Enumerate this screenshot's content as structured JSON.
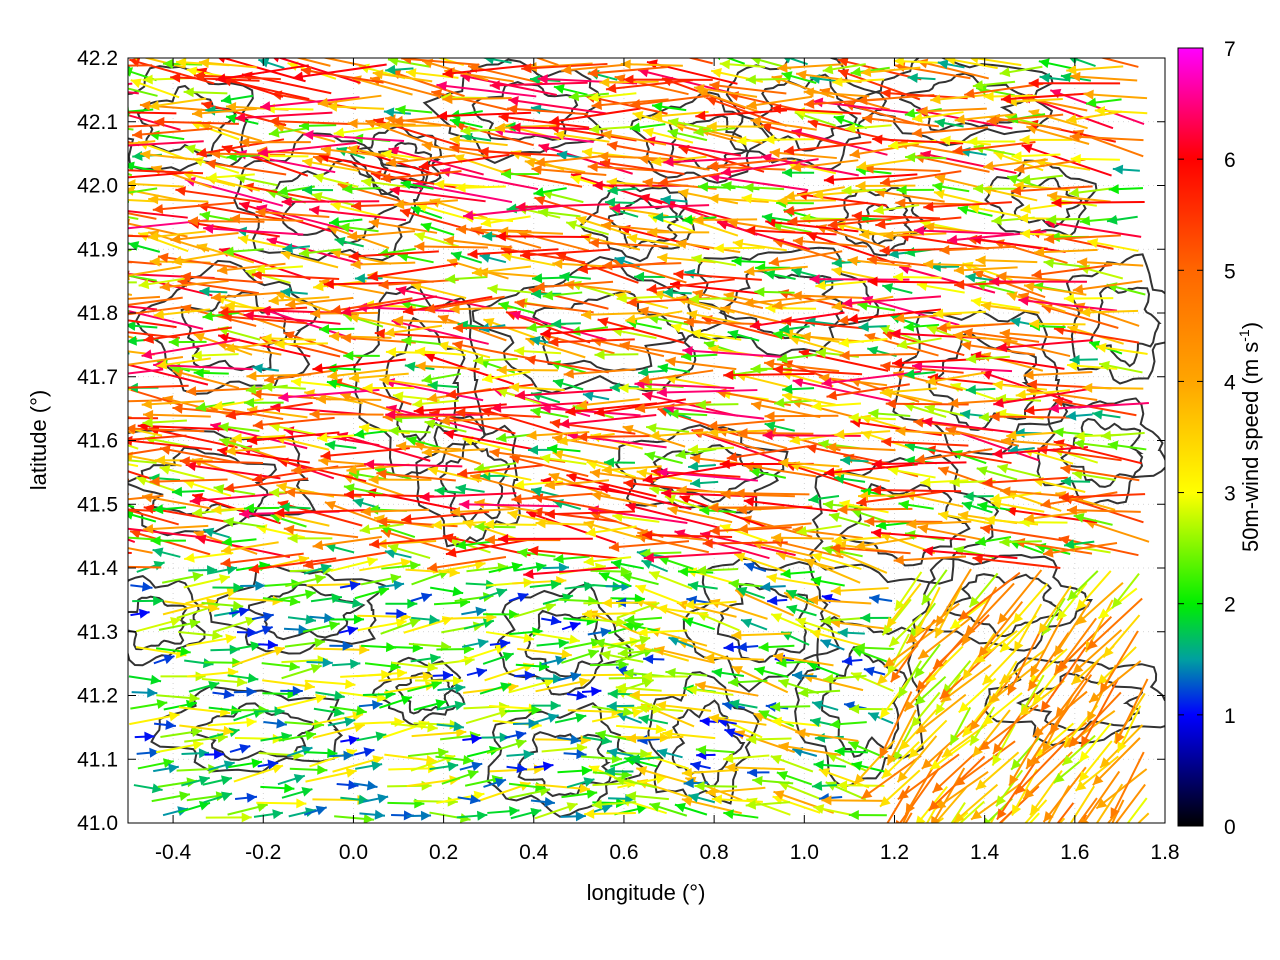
{
  "chart_data": {
    "type": "vector-field",
    "xlabel": "longitude (°)",
    "ylabel": "latitude (°)",
    "xlim": [
      -0.5,
      1.8
    ],
    "ylim": [
      41.0,
      42.2
    ],
    "xticks": [
      -0.4,
      -0.2,
      0.0,
      0.2,
      0.4,
      0.6,
      0.8,
      1.0,
      1.2,
      1.4,
      1.6,
      1.8
    ],
    "xtick_labels": [
      "-0.4",
      "-0.2",
      "0.0",
      "0.2",
      "0.4",
      "0.6",
      "0.8",
      "1.0",
      "1.2",
      "1.4",
      "1.6",
      "1.8"
    ],
    "yticks": [
      41.0,
      41.1,
      41.2,
      41.3,
      41.4,
      41.5,
      41.6,
      41.7,
      41.8,
      41.9,
      42.0,
      42.1,
      42.2
    ],
    "ytick_labels": [
      "41.0",
      "41.1",
      "41.2",
      "41.3",
      "41.4",
      "41.5",
      "41.6",
      "41.7",
      "41.8",
      "41.9",
      "42.0",
      "42.1",
      "42.2"
    ],
    "grid": true,
    "colorbar": {
      "label": "50m-wind speed (m s",
      "label_superscript": "-1",
      "label_suffix": ")",
      "range": [
        0,
        7
      ],
      "ticks": [
        0,
        1,
        2,
        3,
        4,
        5,
        6,
        7
      ],
      "tick_labels": [
        "0",
        "1",
        "2",
        "3",
        "4",
        "5",
        "6",
        "7"
      ],
      "stops": [
        {
          "v": 0,
          "color": "#000000"
        },
        {
          "v": 1,
          "color": "#0000ff"
        },
        {
          "v": 1.5,
          "color": "#00a0a0"
        },
        {
          "v": 2,
          "color": "#00ee00"
        },
        {
          "v": 3,
          "color": "#ffff00"
        },
        {
          "v": 4,
          "color": "#ffa500"
        },
        {
          "v": 5,
          "color": "#ff6600"
        },
        {
          "v": 6,
          "color": "#ff0000"
        },
        {
          "v": 7,
          "color": "#ff00ff"
        }
      ]
    },
    "contour_color": "#333333",
    "wind_field": {
      "note": "50m wind vectors, predominantly from the east (pointing west) in the north and centre, easterly-flow arrows pointing east along the south-west, and northerly arrows in the south-east corner",
      "regions": [
        {
          "lon": [
            -0.5,
            1.8
          ],
          "lat": [
            41.4,
            42.2
          ],
          "dir_deg": 175,
          "speed_range": [
            1.5,
            6.5
          ]
        },
        {
          "lon": [
            -0.5,
            0.6
          ],
          "lat": [
            41.0,
            41.4
          ],
          "dir_deg": 5,
          "speed_range": [
            1.0,
            3.5
          ]
        },
        {
          "lon": [
            0.6,
            1.2
          ],
          "lat": [
            41.0,
            41.4
          ],
          "dir_deg": 170,
          "speed_range": [
            1.0,
            4.0
          ]
        },
        {
          "lon": [
            1.2,
            1.8
          ],
          "lat": [
            41.0,
            41.4
          ],
          "dir_deg": 230,
          "speed_range": [
            2.5,
            5.0
          ]
        }
      ]
    }
  }
}
